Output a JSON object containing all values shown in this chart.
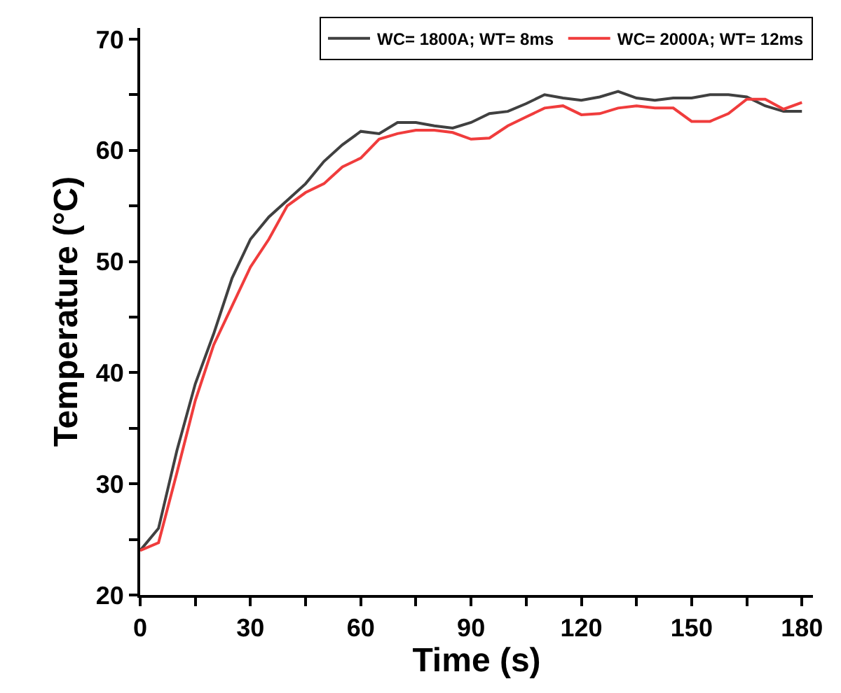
{
  "chart_data": {
    "type": "line",
    "xlabel": "Time (s)",
    "ylabel": "Temperature (°C)",
    "x": [
      0,
      5,
      10,
      15,
      20,
      25,
      30,
      35,
      40,
      45,
      50,
      55,
      60,
      65,
      70,
      75,
      80,
      85,
      90,
      95,
      100,
      105,
      110,
      115,
      120,
      125,
      130,
      135,
      140,
      145,
      150,
      155,
      160,
      165,
      170,
      175,
      180
    ],
    "series": [
      {
        "name": "WC= 1800A; WT= 8ms",
        "color": "#404040",
        "values": [
          24,
          26,
          33,
          39,
          43.5,
          48.5,
          52,
          54,
          55.5,
          57,
          59,
          60.5,
          61.7,
          61.5,
          62.5,
          62.5,
          62.2,
          62,
          62.5,
          63.3,
          63.5,
          64.2,
          65,
          64.7,
          64.5,
          64.8,
          65.3,
          64.7,
          64.5,
          64.7,
          64.7,
          65,
          65,
          64.8,
          64,
          63.5,
          63.5
        ]
      },
      {
        "name": "WC= 2000A; WT= 12ms",
        "color": "#f03c3c",
        "values": [
          24,
          24.7,
          31,
          37.5,
          42.5,
          46,
          49.5,
          52,
          55,
          56.2,
          57,
          58.5,
          59.3,
          61,
          61.5,
          61.8,
          61.8,
          61.6,
          61,
          61.1,
          62.2,
          63,
          63.8,
          64,
          63.2,
          63.3,
          63.8,
          64,
          63.8,
          63.8,
          62.6,
          62.6,
          63.3,
          64.6,
          64.6,
          63.7,
          64.3
        ]
      }
    ],
    "xlim": [
      0,
      183
    ],
    "ylim": [
      20,
      71
    ],
    "xticks": [
      0,
      {
        "value": 15,
        "label": null
      },
      30,
      {
        "value": 45,
        "label": null
      },
      60,
      {
        "value": 75,
        "label": null
      },
      90,
      {
        "value": 105,
        "label": null
      },
      120,
      {
        "value": 135,
        "label": null
      },
      150,
      {
        "value": 165,
        "label": null
      },
      180
    ],
    "yticks": [
      20,
      {
        "value": 25,
        "label": null
      },
      30,
      {
        "value": 35,
        "label": null
      },
      40,
      {
        "value": 45,
        "label": null
      },
      50,
      {
        "value": 55,
        "label": null
      },
      60,
      {
        "value": 65,
        "label": null
      },
      70
    ],
    "legend": "top right",
    "marker": "none",
    "line_style": "solid"
  }
}
